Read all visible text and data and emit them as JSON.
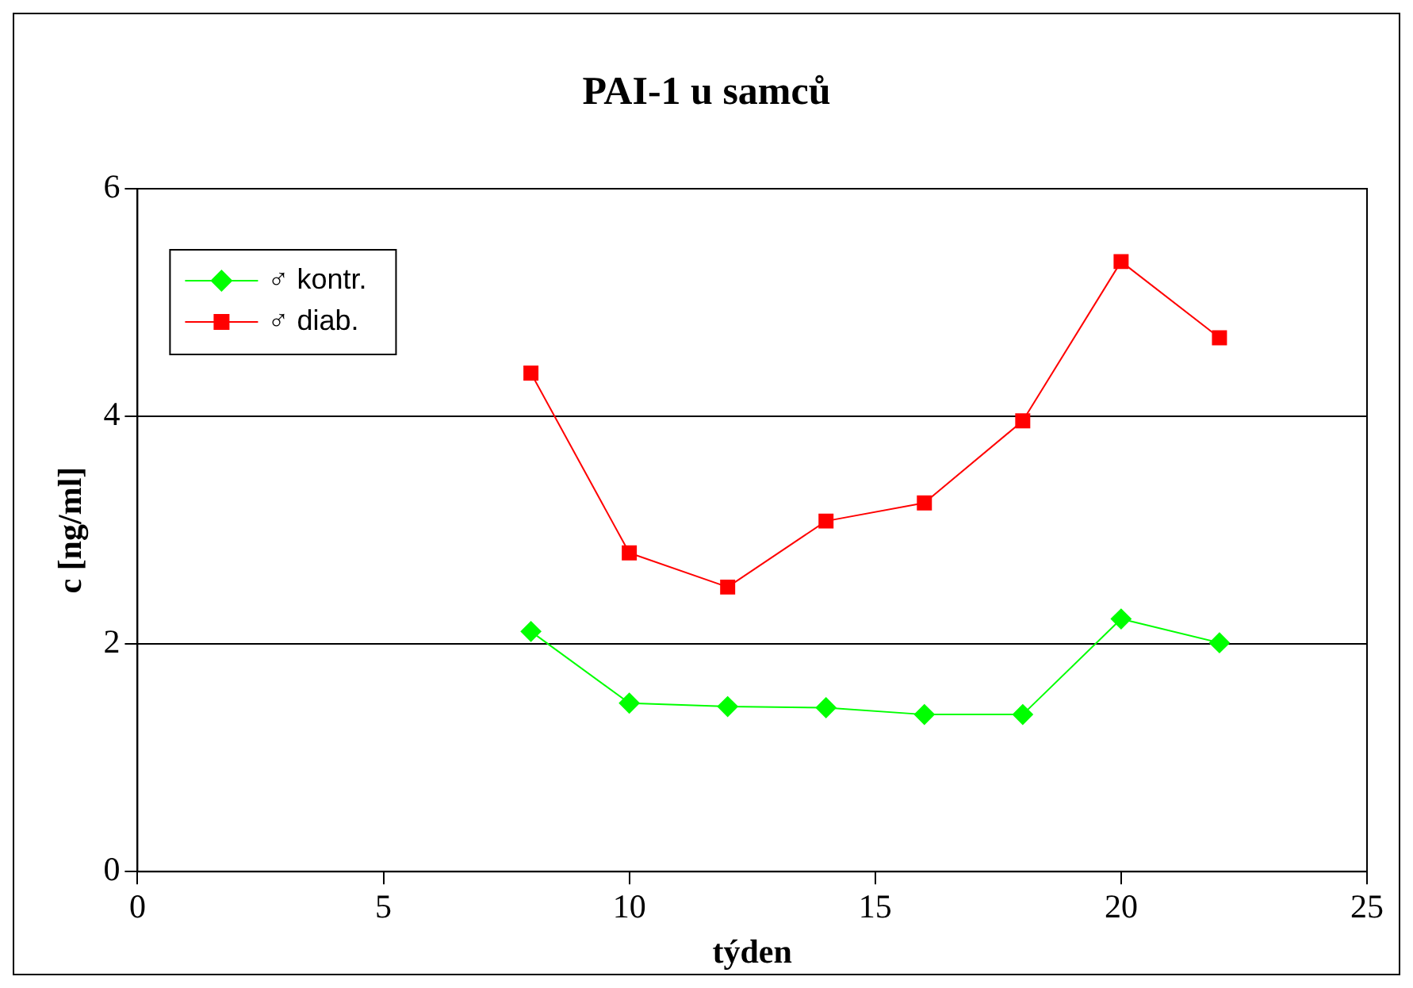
{
  "chart_data": {
    "type": "line",
    "title": "PAI-1 u samců",
    "xlabel": "týden",
    "ylabel": "c [ng/ml]",
    "x": [
      8,
      10,
      12,
      14,
      16,
      18,
      20,
      22
    ],
    "series": [
      {
        "name": "♂ kontr.",
        "color": "#00ff00",
        "marker": "diamond",
        "values": [
          2.11,
          1.48,
          1.45,
          1.44,
          1.38,
          1.38,
          2.22,
          2.01
        ]
      },
      {
        "name": "♂ diab.",
        "color": "#ff0000",
        "marker": "square",
        "values": [
          4.38,
          2.8,
          2.5,
          3.08,
          3.24,
          3.96,
          5.36,
          4.69
        ]
      }
    ],
    "xlim": [
      0,
      25
    ],
    "xticks": [
      0,
      5,
      10,
      15,
      20,
      25
    ],
    "ylim": [
      0,
      6
    ],
    "yticks": [
      0,
      2,
      4,
      6
    ],
    "grid": "y",
    "legend": "top left",
    "line_style": "solid"
  }
}
